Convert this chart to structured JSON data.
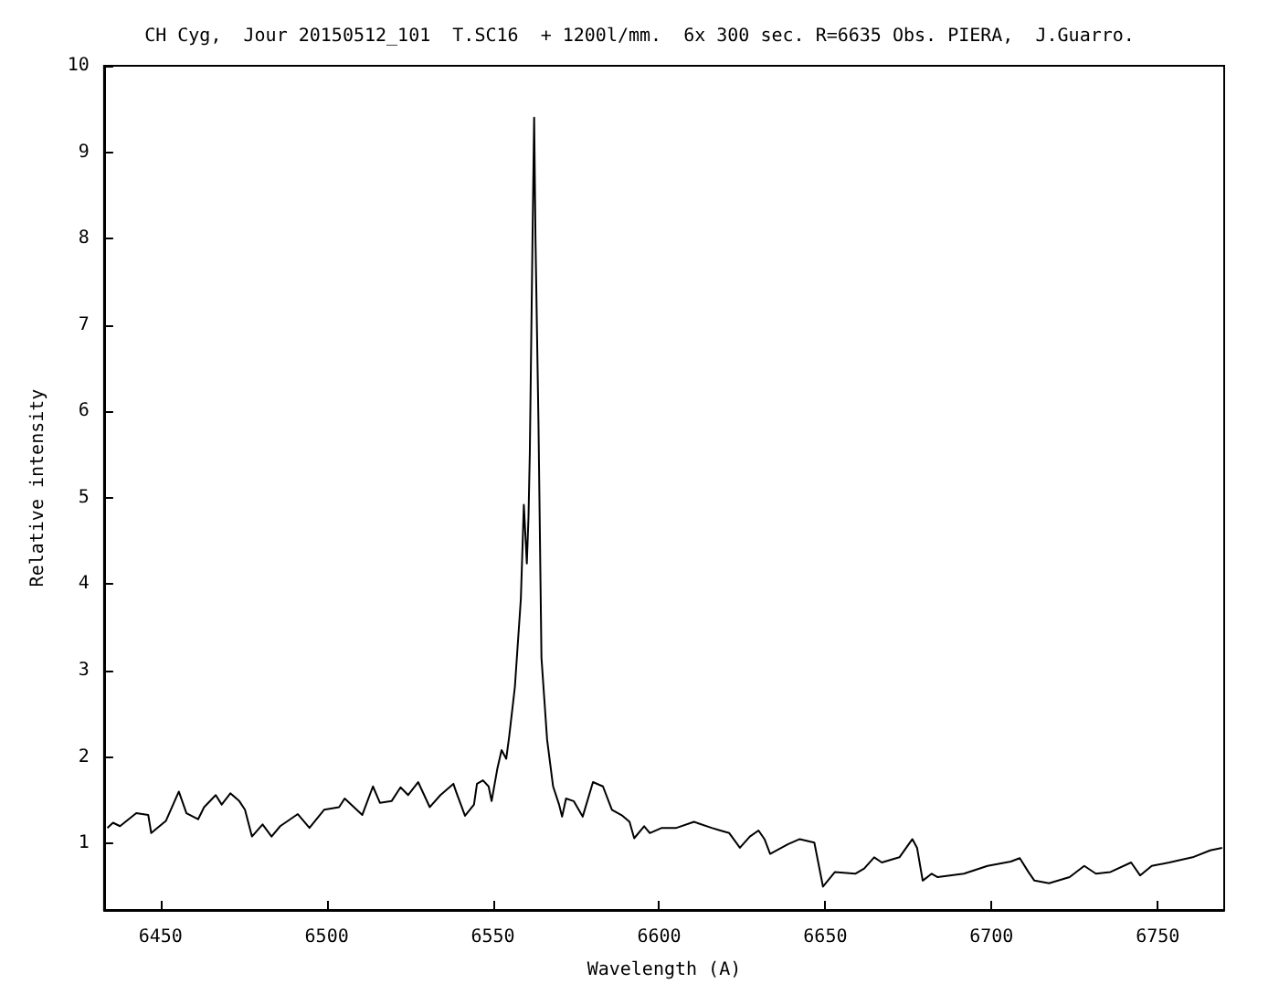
{
  "chart_data": {
    "type": "line",
    "title": "CH Cyg,  Jour 20150512_101  T.SC16  + 1200l/mm.  6x 300 sec. R=6635 Obs. PIERA,  J.Guarro.",
    "xlabel": "Wavelength (A)",
    "ylabel": "Relative intensity",
    "xlim": [
      6433,
      6770
    ],
    "ylim": [
      0.23,
      10
    ],
    "xticks": [
      6450,
      6500,
      6550,
      6600,
      6650,
      6700,
      6750
    ],
    "yticks": [
      1,
      2,
      3,
      4,
      5,
      6,
      7,
      8,
      9,
      10
    ],
    "marker": "none",
    "line_style": "solid",
    "series": [
      {
        "color": "#000000",
        "x": [
          6434,
          6435.7,
          6437.8,
          6442.7,
          6446.3,
          6447.2,
          6451.6,
          6455.5,
          6457.8,
          6461.3,
          6463.1,
          6466.6,
          6468.4,
          6471,
          6473.7,
          6475.4,
          6477.5,
          6480.7,
          6483.4,
          6486,
          6491.3,
          6494.8,
          6499.2,
          6503.7,
          6505.4,
          6510.7,
          6513.9,
          6516,
          6519.5,
          6522.2,
          6524.5,
          6527.5,
          6531,
          6534.2,
          6538.1,
          6539,
          6541.6,
          6544.3,
          6545.2,
          6547,
          6548.7,
          6549.6,
          6551.3,
          6552.6,
          6554,
          6554.9,
          6556.6,
          6558.4,
          6559.3,
          6560.2,
          6560.7,
          6561.1,
          6561.9,
          6562.4,
          6562.8,
          6563.7,
          6564.6,
          6566.3,
          6568.1,
          6569.9,
          6570.8,
          6572,
          6574.3,
          6577,
          6580.1,
          6583.1,
          6585.8,
          6589,
          6591.1,
          6592.5,
          6595.5,
          6597.2,
          6600.8,
          6605.2,
          6610.5,
          6615.8,
          6618.4,
          6621.1,
          6624.3,
          6627.3,
          6629.9,
          6631.7,
          6633.4,
          6638.7,
          6642.3,
          6646.7,
          6649.3,
          6652.9,
          6659,
          6661.7,
          6664.7,
          6667,
          6672.3,
          6676.2,
          6677.6,
          6679.3,
          6682,
          6683.8,
          6691.7,
          6698.8,
          6705.8,
          6708.5,
          6711.1,
          6712.9,
          6717.3,
          6723.5,
          6727.9,
          6731.4,
          6735.8,
          6742,
          6744.7,
          6748.2,
          6753.5,
          6760.5,
          6765.8,
          6769.4
        ],
        "values": [
          1.18,
          1.24,
          1.2,
          1.35,
          1.33,
          1.12,
          1.26,
          1.6,
          1.35,
          1.28,
          1.42,
          1.56,
          1.45,
          1.58,
          1.49,
          1.39,
          1.08,
          1.22,
          1.08,
          1.2,
          1.34,
          1.18,
          1.39,
          1.42,
          1.52,
          1.33,
          1.66,
          1.47,
          1.49,
          1.65,
          1.56,
          1.71,
          1.42,
          1.56,
          1.69,
          1.59,
          1.32,
          1.45,
          1.69,
          1.73,
          1.66,
          1.49,
          1.86,
          2.08,
          1.98,
          2.24,
          2.81,
          3.83,
          4.92,
          4.24,
          4.78,
          5.53,
          7.97,
          9.4,
          8.01,
          5.87,
          3.15,
          2.2,
          1.66,
          1.45,
          1.31,
          1.52,
          1.49,
          1.31,
          1.71,
          1.66,
          1.39,
          1.32,
          1.25,
          1.06,
          1.2,
          1.12,
          1.18,
          1.18,
          1.25,
          1.18,
          1.15,
          1.12,
          0.95,
          1.08,
          1.15,
          1.05,
          0.88,
          0.99,
          1.05,
          1.01,
          0.5,
          0.67,
          0.65,
          0.71,
          0.84,
          0.78,
          0.84,
          1.05,
          0.95,
          0.57,
          0.65,
          0.61,
          0.65,
          0.74,
          0.79,
          0.83,
          0.67,
          0.57,
          0.54,
          0.61,
          0.74,
          0.65,
          0.67,
          0.78,
          0.63,
          0.74,
          0.78,
          0.84,
          0.92,
          0.95
        ]
      }
    ]
  }
}
